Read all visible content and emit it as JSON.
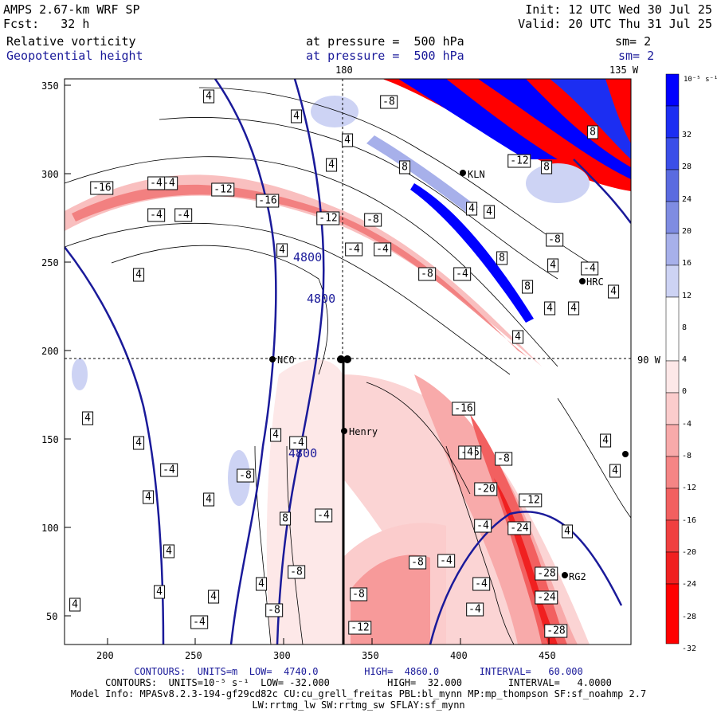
{
  "header": {
    "model": "AMPS 2.67-km WRF SP",
    "init": "Init: 12 UTC Wed 30 Jul 25",
    "fcst": "Fcst:   32 h",
    "valid": "Valid: 20 UTC Thu 31 Jul 25",
    "field1": "Relative vorticity",
    "field1_pressure": "at pressure =  500 hPa",
    "field1_sm": "sm= 2",
    "field2": "Geopotential height",
    "field2_pressure": "at pressure =  500 hPa",
    "field2_sm": "sm= 2"
  },
  "map": {
    "lon_label_180": "180",
    "lon_label_135w": "135 W",
    "lon_label_90w": "90 W",
    "x_ticks": [
      "200",
      "250",
      "300",
      "350",
      "400",
      "450"
    ],
    "y_ticks": [
      "350",
      "300",
      "250",
      "200",
      "150",
      "100",
      "50"
    ],
    "stations": [
      "NCO",
      "Henry",
      "KLN",
      "HRC",
      "RG2"
    ],
    "height_labels": [
      "4800",
      "4800",
      "4800"
    ],
    "vort_labels": [
      "-16",
      "-4",
      "-12",
      "-16",
      "-4",
      "-4",
      "-4",
      "-12",
      "-8",
      "-4",
      "-4",
      "-8",
      "-4",
      "-8",
      "4",
      "4",
      "4",
      "4",
      "4",
      "4",
      "4",
      "4",
      "-8",
      "8",
      "8",
      "-12",
      "8",
      "4",
      "4",
      "4",
      "4",
      "8",
      "8",
      "4",
      "-4",
      "4",
      "-4",
      "-8",
      "4",
      "-16",
      "-16",
      "-8",
      "-20",
      "-12",
      "-24",
      "-28",
      "-24",
      "-28",
      "-4",
      "-8",
      "4",
      "-4",
      "-4",
      "-8",
      "-8",
      "-12",
      "-4",
      "-8",
      "4",
      "4",
      "4",
      "4",
      "4",
      "4",
      "-4",
      "-4",
      "4",
      "4",
      "-4",
      "8",
      "4",
      "4",
      "4"
    ]
  },
  "colorbar": {
    "units": "10⁻⁵ s⁻¹",
    "labels": [
      "32",
      "28",
      "24",
      "20",
      "16",
      "12",
      "8",
      "4",
      "0",
      "-4",
      "-8",
      "-12",
      "-16",
      "-20",
      "-24",
      "-28",
      "-32"
    ],
    "colors": [
      "#0000ff",
      "#1c2ef2",
      "#3a4ee8",
      "#5a6be0",
      "#7f8ce2",
      "#a7b0ea",
      "#cdd3f4",
      "#ffffff",
      "#ffffff",
      "#fde8e8",
      "#fbcccc",
      "#f8aaaa",
      "#f58585",
      "#f26060",
      "#f04040",
      "#f02020",
      "#ff0000"
    ]
  },
  "footer": {
    "contours1": "CONTOURS:  UNITS=m  LOW=  4740.0        HIGH=  4860.0       INTERVAL=   60.000",
    "contours2": "CONTOURS:  UNITS=10⁻⁵ s⁻¹  LOW= -32.000          HIGH=  32.000        INTERVAL=   4.0000",
    "model_info": "Model Info: MPASv8.2.3-194-gf29cd82c CU:cu_grell_freitas PBL:bl_mynn MP:mp_thompson SF:sf_noahmp 2.7",
    "model_info2": "LW:rrtmg_lw SW:rrtmg_sw SFLAY:sf_mynn"
  }
}
